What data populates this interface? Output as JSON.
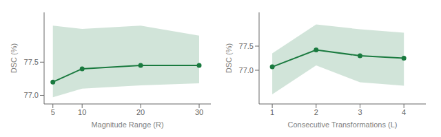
{
  "chart_data": [
    {
      "type": "line",
      "x": [
        5,
        10,
        20,
        30
      ],
      "values": [
        77.2,
        77.4,
        77.45,
        77.45
      ],
      "upper": [
        78.05,
        78.0,
        78.05,
        77.9
      ],
      "lower": [
        76.97,
        77.1,
        77.15,
        77.18
      ],
      "color": "#1a7a3f",
      "marker": "circle",
      "xlabel": "Magnitude Range (R)",
      "ylabel": "DSC (%)",
      "xlim": [
        3.5,
        32
      ],
      "ylim": [
        76.87,
        78.25
      ],
      "xticks": [
        5,
        10,
        20,
        30
      ],
      "yticks": [
        {
          "value": 77.0,
          "label": "77.0"
        },
        77.5
      ]
    },
    {
      "type": "line",
      "x": [
        1,
        2,
        3,
        4
      ],
      "values": [
        77.07,
        77.42,
        77.3,
        77.25
      ],
      "upper": [
        77.35,
        77.95,
        77.85,
        77.78
      ],
      "lower": [
        76.5,
        77.1,
        76.75,
        76.68
      ],
      "color": "#1a7a3f",
      "marker": "circle",
      "xlabel": "Consecutive Transformations (L)",
      "ylabel": "DSC (%)",
      "xlim": [
        0.7,
        4.5
      ],
      "ylim": [
        76.3,
        78.2
      ],
      "xticks": [
        1,
        2,
        3,
        4
      ],
      "yticks": [
        {
          "value": 77.0,
          "label": "77.0"
        },
        77.5
      ]
    }
  ]
}
